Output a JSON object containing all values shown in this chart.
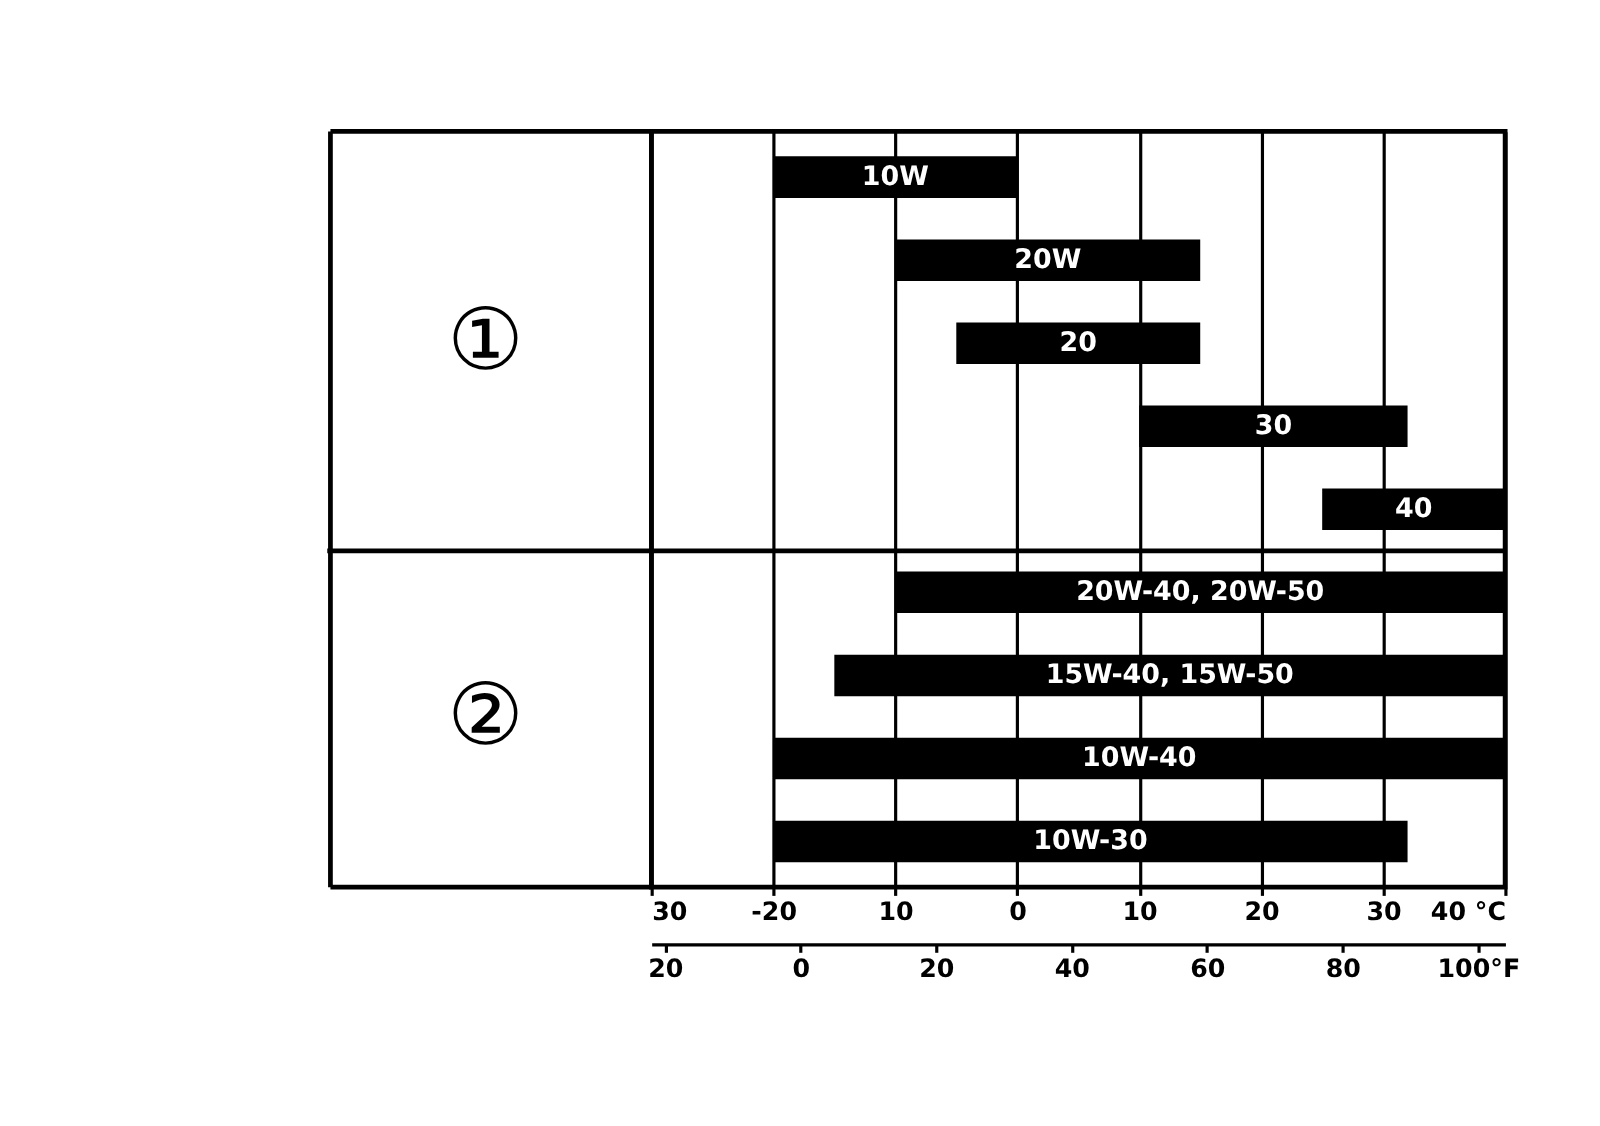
{
  "chart_data": {
    "type": "bar",
    "orientation": "horizontal",
    "categories": [
      "10W",
      "20W",
      "20",
      "30",
      "40",
      "20W-40, 20W-50",
      "15W-40, 15W-50",
      "10W-40",
      "10W-30"
    ],
    "base": [
      -20,
      -10,
      -5,
      10,
      25,
      -10,
      -15,
      -20,
      -20
    ],
    "values": [
      20,
      25,
      20,
      22,
      15,
      50,
      55,
      60,
      52
    ],
    "color": "#000000",
    "annotations": [
      "①",
      "②"
    ],
    "ref_lines": [
      {
        "axis": "y",
        "value": "20W-40, 20W-50",
        "color": "#000000"
      }
    ],
    "xlim": [
      -30,
      40
    ],
    "xticks": [
      {
        "value": -30,
        "label": "30"
      },
      -20,
      {
        "value": -10,
        "label": "10"
      },
      0,
      10,
      20,
      30,
      {
        "value": 40,
        "label": "40 °C"
      }
    ],
    "x2lim": [
      -22,
      104
    ],
    "x2ticks": [
      {
        "value": -20,
        "label": "20"
      },
      0,
      20,
      40,
      60,
      80,
      {
        "value": 100,
        "label": "100°F"
      }
    ],
    "grid": "x",
    "tick_labels": "x"
  }
}
